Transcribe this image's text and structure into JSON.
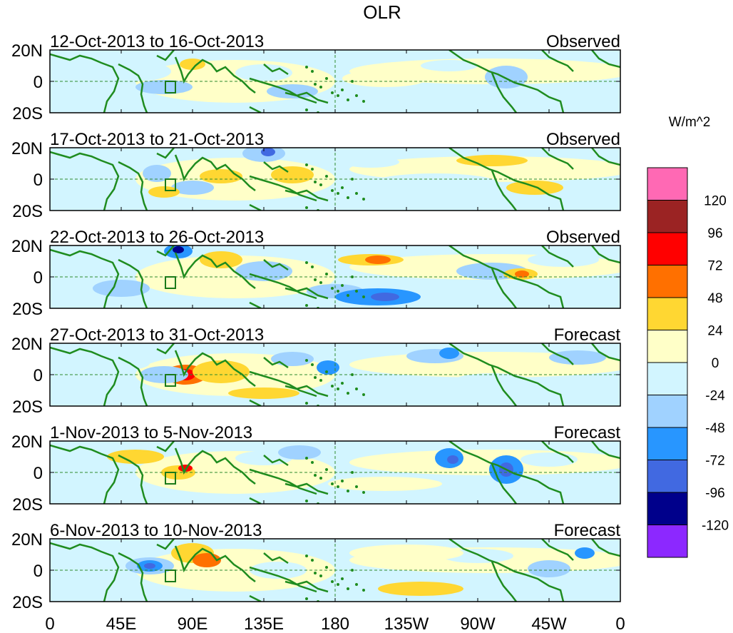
{
  "title": "OLR",
  "units": "W/m^2",
  "lat_labels": [
    "20N",
    "0",
    "20S"
  ],
  "lon_labels": [
    "0",
    "45E",
    "90E",
    "135E",
    "180",
    "135W",
    "90W",
    "45W",
    "0"
  ],
  "panels": [
    {
      "period": "12-Oct-2013 to 16-Oct-2013",
      "type": "Observed"
    },
    {
      "period": "17-Oct-2013 to 21-Oct-2013",
      "type": "Observed"
    },
    {
      "period": "22-Oct-2013 to 26-Oct-2013",
      "type": "Observed"
    },
    {
      "period": "27-Oct-2013 to 31-Oct-2013",
      "type": "Forecast"
    },
    {
      "period": "1-Nov-2013 to 5-Nov-2013",
      "type": "Forecast"
    },
    {
      "period": "6-Nov-2013 to 10-Nov-2013",
      "type": "Forecast"
    }
  ],
  "legend": {
    "labels": [
      "120",
      "96",
      "72",
      "48",
      "24",
      "0",
      "-24",
      "-48",
      "-72",
      "-96",
      "-120"
    ],
    "colors": [
      "#ff69b4",
      "#9b2323",
      "#ff0000",
      "#ff7000",
      "#ffd732",
      "#ffffc8",
      "#d2f5ff",
      "#a0d2ff",
      "#2896ff",
      "#4169e1",
      "#00008b",
      "#8c28ff"
    ]
  }
}
